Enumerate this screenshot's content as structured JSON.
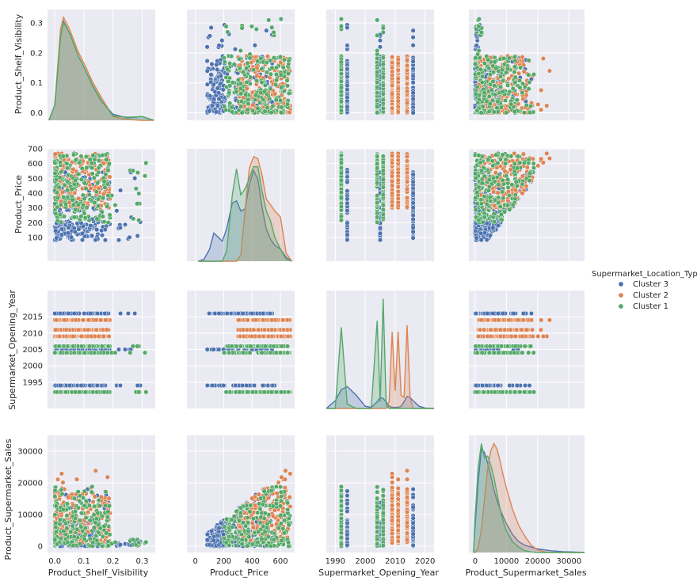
{
  "colors": {
    "Cluster 3": "#4c72b0",
    "Cluster 2": "#dd8452",
    "Cluster 1": "#55a868",
    "panel_bg": "#eaeaf2",
    "grid": "#ffffff"
  },
  "chart_data": {
    "type": "pairplot",
    "variables": [
      "Product_Shelf_Visibility",
      "Product_Price",
      "Supermarket_Opening_Year",
      "Product_Supermarket_Sales"
    ],
    "diagonal": "kde",
    "offdiagonal": "scatter",
    "grid": true,
    "legend": {
      "title": "Supermarket_Location_Type",
      "placement": "right",
      "entries": [
        "Cluster 3",
        "Cluster 2",
        "Cluster 1"
      ]
    },
    "axes": {
      "Product_Shelf_Visibility": {
        "range": [
          -0.025,
          0.345
        ],
        "ticks": [
          "0.0",
          "0.1",
          "0.2",
          "0.3"
        ],
        "tick_values": [
          0,
          0.1,
          0.2,
          0.3
        ]
      },
      "Product_Price": {
        "range": [
          -60,
          700
        ],
        "ticks_x": [
          "0",
          "200",
          "400",
          "600"
        ],
        "tick_values_x": [
          0,
          200,
          400,
          600
        ],
        "ticks_y": [
          "100",
          "200",
          "300",
          "400",
          "500",
          "600",
          "700"
        ],
        "tick_values_y": [
          100,
          200,
          300,
          400,
          500,
          600,
          700
        ]
      },
      "Supermarket_Opening_Year": {
        "range": [
          1987,
          2023
        ],
        "ticks_x": [
          "1990",
          "2000",
          "2010",
          "2020"
        ],
        "tick_values_x": [
          1990,
          2000,
          2010,
          2020
        ],
        "ticks_y": [
          "1995",
          "2000",
          "2005",
          "2010",
          "2015"
        ],
        "tick_values_y": [
          1995,
          2000,
          2005,
          2010,
          2015
        ]
      },
      "Product_Supermarket_Sales": {
        "range": [
          -2000,
          35000
        ],
        "ticks_x": [
          "0",
          "10000",
          "20000",
          "30000"
        ],
        "tick_values_x": [
          0,
          10000,
          20000,
          30000
        ],
        "ticks_y": [
          "0",
          "10000",
          "20000",
          "30000"
        ],
        "tick_values_y": [
          0,
          10000,
          20000,
          30000
        ]
      }
    },
    "clusters": {
      "Cluster 3": {
        "years": [
          1994,
          2005,
          2016
        ],
        "visibility_range": [
          0.0,
          0.31
        ],
        "price_range": [
          80,
          560
        ],
        "sales_range": [
          0,
          33000
        ]
      },
      "Cluster 2": {
        "years": [
          2009,
          2011,
          2014
        ],
        "visibility_range": [
          0.0,
          0.19
        ],
        "price_range": [
          300,
          670
        ],
        "sales_range": [
          1000,
          24000
        ]
      },
      "Cluster 1": {
        "years": [
          1992,
          2004,
          2006
        ],
        "visibility_range": [
          0.0,
          0.32
        ],
        "price_range": [
          200,
          670
        ],
        "sales_range": [
          0,
          19000
        ]
      }
    },
    "kde_visibility": {
      "x": [
        -0.02,
        0.0,
        0.02,
        0.03,
        0.05,
        0.08,
        0.1,
        0.13,
        0.16,
        0.2,
        0.25,
        0.3,
        0.34
      ],
      "Cluster 3": [
        0,
        2,
        11,
        13,
        11.5,
        8.5,
        7,
        4.5,
        2.5,
        0.8,
        0.3,
        0.5,
        0
      ],
      "Cluster 2": [
        0,
        2,
        12,
        13.5,
        12,
        9,
        7.5,
        5,
        3,
        0.5,
        0.1,
        0,
        0
      ],
      "Cluster 1": [
        0,
        2,
        11,
        12.8,
        11.5,
        8.5,
        7,
        4.6,
        2.6,
        0.6,
        0.4,
        0.5,
        0
      ]
    },
    "kde_price": {
      "x": [
        20,
        60,
        100,
        130,
        160,
        190,
        220,
        260,
        290,
        320,
        350,
        380,
        410,
        440,
        470,
        500,
        530,
        560,
        600,
        640,
        680
      ],
      "Cluster 3": [
        0,
        0.1,
        0.6,
        1.4,
        1.2,
        1.0,
        1.6,
        2.9,
        3.0,
        2.5,
        2.6,
        3.8,
        4.5,
        4.1,
        2.7,
        1.6,
        1.1,
        0.8,
        0.6,
        0.2,
        0
      ],
      "Cluster 2": [
        0,
        0,
        0,
        0,
        0,
        0,
        0,
        0,
        0,
        0.3,
        2.5,
        4.6,
        5.2,
        5.1,
        4.3,
        3.1,
        2.8,
        2.5,
        2.2,
        0.4,
        0
      ],
      "Cluster 1": [
        0,
        0,
        0,
        0,
        0,
        0,
        0.5,
        3.3,
        4.6,
        3.3,
        3.6,
        4.1,
        4.7,
        4.7,
        3.5,
        2.5,
        2.0,
        1.2,
        0.6,
        0.1,
        0
      ]
    },
    "kde_year": {
      "x": [
        1987,
        1990,
        1992,
        1994,
        1997,
        2000,
        2002,
        2004,
        2005,
        2006,
        2007,
        2008,
        2009,
        2010,
        2011,
        2012,
        2013,
        2014,
        2015,
        2016,
        2018,
        2020,
        2023
      ],
      "Cluster 3": [
        0,
        0.35,
        0.85,
        1.0,
        0.6,
        0.1,
        0.05,
        0.3,
        0.5,
        0.45,
        0.3,
        0.1,
        0.05,
        0.05,
        0.05,
        0.1,
        0.3,
        0.55,
        0.5,
        0.35,
        0.1,
        0.02,
        0
      ],
      "Cluster 2": [
        0,
        0,
        0,
        0,
        0,
        0,
        0,
        0,
        0,
        0,
        0,
        0.3,
        3.5,
        0.8,
        3.5,
        0.6,
        0.5,
        3.8,
        0.5,
        0,
        0,
        0,
        0
      ],
      "Cluster 1": [
        0,
        0,
        3.7,
        0.2,
        0,
        0,
        0,
        4.0,
        0.3,
        5.0,
        0.2,
        0,
        0,
        0,
        0,
        0,
        0,
        0,
        0,
        0,
        0,
        0,
        0
      ]
    },
    "kde_sales": {
      "x": [
        -500,
        0,
        1000,
        2000,
        3000,
        4000,
        5000,
        6000,
        7000,
        8000,
        9000,
        10000,
        12000,
        14000,
        16000,
        18000,
        20000,
        22000,
        24000,
        28000,
        32000,
        35000
      ],
      "Cluster 3": [
        0,
        1.5,
        4.0,
        5.8,
        5.6,
        5.0,
        4.3,
        3.5,
        2.9,
        2.4,
        2.0,
        1.6,
        1.0,
        0.6,
        0.4,
        0.3,
        0.2,
        0.15,
        0.1,
        0.05,
        0.02,
        0
      ],
      "Cluster 2": [
        0,
        0,
        0.3,
        1.3,
        3.0,
        4.7,
        5.7,
        6.1,
        5.8,
        5.1,
        4.3,
        3.6,
        2.4,
        1.5,
        0.9,
        0.4,
        0.15,
        0.05,
        0,
        0,
        0,
        0
      ],
      "Cluster 1": [
        0,
        2.0,
        4.8,
        6.1,
        5.3,
        5.4,
        4.9,
        4.2,
        3.3,
        2.4,
        1.7,
        1.2,
        0.6,
        0.3,
        0.1,
        0.03,
        0,
        0,
        0,
        0,
        0,
        0
      ]
    }
  }
}
